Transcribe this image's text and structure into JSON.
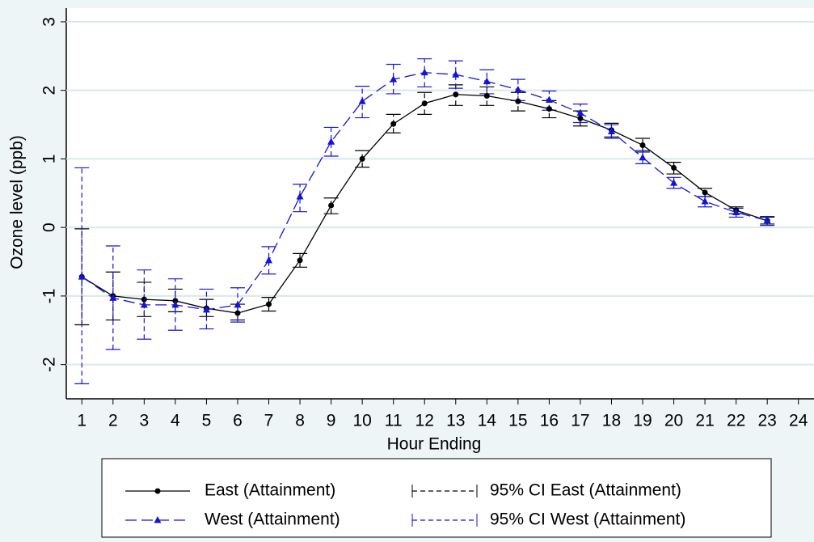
{
  "chart_data": {
    "type": "line",
    "x_label": "Hour Ending",
    "y_label": "Ozone level (ppb)",
    "x": [
      1,
      2,
      3,
      4,
      5,
      6,
      7,
      8,
      9,
      10,
      11,
      12,
      13,
      14,
      15,
      16,
      17,
      18,
      19,
      20,
      21,
      22,
      23
    ],
    "xlim": [
      0.5,
      24.5
    ],
    "xticks": [
      1,
      2,
      3,
      4,
      5,
      6,
      7,
      8,
      9,
      10,
      11,
      12,
      13,
      14,
      15,
      16,
      17,
      18,
      19,
      20,
      21,
      22,
      23,
      24
    ],
    "ylim": [
      -2.5,
      3.2
    ],
    "yticks": [
      -2,
      -1,
      0,
      1,
      2,
      3
    ],
    "grid": true,
    "series": [
      {
        "name": "East (Attainment)",
        "color": "#000000",
        "marker": "circle",
        "dash": "solid",
        "values": [
          -0.72,
          -1.0,
          -1.05,
          -1.07,
          -1.18,
          -1.25,
          -1.12,
          -0.48,
          0.32,
          1.0,
          1.51,
          1.81,
          1.94,
          1.92,
          1.84,
          1.73,
          1.59,
          1.42,
          1.2,
          0.87,
          0.51,
          0.25,
          0.1
        ]
      },
      {
        "name": "West (Attainment)",
        "color": "#1414d8",
        "marker": "triangle",
        "dash": "long",
        "values": [
          -0.72,
          -1.03,
          -1.13,
          -1.13,
          -1.2,
          -1.13,
          -0.48,
          0.45,
          1.25,
          1.84,
          2.16,
          2.26,
          2.23,
          2.13,
          2.01,
          1.86,
          1.67,
          1.4,
          1.02,
          0.65,
          0.38,
          0.22,
          0.1
        ]
      }
    ],
    "ci": [
      {
        "name": "95% CI East (Attainment)",
        "color": "#000000",
        "low": [
          -1.42,
          -1.35,
          -1.3,
          -1.23,
          -1.3,
          -1.35,
          -1.22,
          -0.58,
          0.2,
          0.88,
          1.38,
          1.65,
          1.78,
          1.78,
          1.7,
          1.6,
          1.48,
          1.32,
          1.1,
          0.78,
          0.45,
          0.2,
          0.05
        ],
        "high": [
          -0.02,
          -0.65,
          -0.8,
          -0.9,
          -1.05,
          -1.12,
          -1.02,
          -0.38,
          0.43,
          1.12,
          1.65,
          1.97,
          2.08,
          2.05,
          1.97,
          1.85,
          1.7,
          1.52,
          1.3,
          0.95,
          0.57,
          0.3,
          0.15
        ]
      },
      {
        "name": "95% CI West (Attainment)",
        "color": "#1414d8",
        "low": [
          -2.28,
          -1.78,
          -1.63,
          -1.5,
          -1.48,
          -1.38,
          -0.68,
          0.23,
          1.04,
          1.6,
          1.95,
          2.05,
          2.03,
          1.95,
          1.85,
          1.71,
          1.53,
          1.3,
          0.93,
          0.57,
          0.3,
          0.15,
          0.03
        ],
        "high": [
          0.87,
          -0.27,
          -0.62,
          -0.75,
          -0.9,
          -0.88,
          -0.28,
          0.63,
          1.46,
          2.06,
          2.38,
          2.46,
          2.43,
          2.3,
          2.16,
          1.99,
          1.8,
          1.5,
          1.12,
          0.73,
          0.45,
          0.28,
          0.16
        ]
      }
    ]
  }
}
